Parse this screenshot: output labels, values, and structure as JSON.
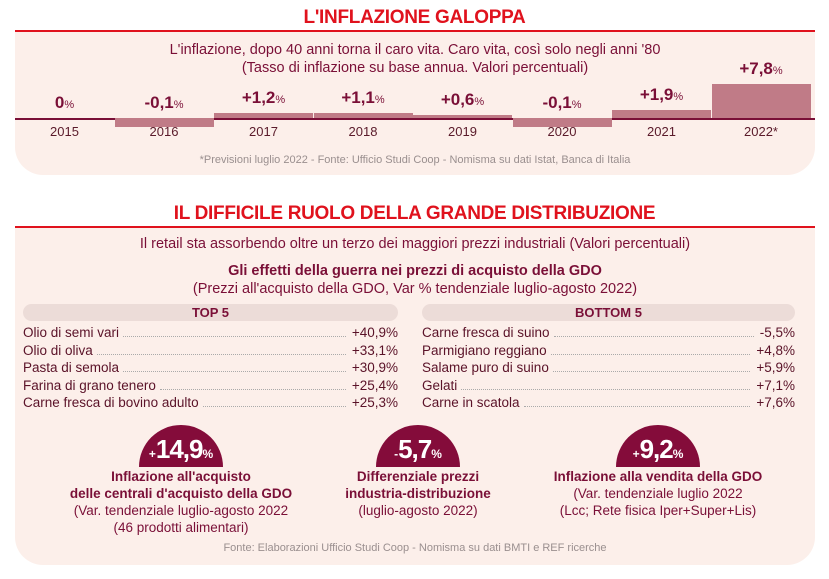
{
  "section1": {
    "title": "L'INFLAZIONE GALOPPA",
    "subtitle": "L'inflazione, dopo 40 anni torna il caro vita. Caro vita, così solo negli anni '80",
    "subtitle2": "(Tasso di inflazione su base annua. Valori percentuali)",
    "note": "*Previsioni luglio 2022 - Fonte: Ufficio Studi Coop - Nomisma su dati Istat, Banca di Italia"
  },
  "chart_data": {
    "type": "bar",
    "title": "L'inflazione, dopo 40 anni torna il caro vita",
    "categories": [
      "2015",
      "2016",
      "2017",
      "2018",
      "2019",
      "2020",
      "2021",
      "2022*"
    ],
    "values": [
      0,
      -0.1,
      1.2,
      1.1,
      0.6,
      -0.1,
      1.9,
      7.8
    ],
    "labels": [
      "0",
      "-0,1",
      "+1,2",
      "+1,1",
      "+0,6",
      "-0,1",
      "+1,9",
      "+7,8"
    ],
    "unit": "%",
    "ylabel": "Tasso di inflazione su base annua (%)"
  },
  "section2": {
    "title": "IL DIFFICILE RUOLO DELLA GRANDE DISTRIBUZIONE",
    "subtitle_bold": "Il retail sta assorbendo oltre un terzo dei maggiori prezzi industriali",
    "subtitle_rest": " (Valori percentuali)",
    "heading": "Gli effetti della guerra nei prezzi di acquisto della GDO",
    "heading2": "(Prezzi all'acquisto della GDO, Var % tendenziale luglio-agosto 2022)",
    "top_label": "TOP 5",
    "bottom_label": "BOTTOM 5",
    "top": [
      {
        "name": "Olio di semi vari",
        "value": "+40,9%"
      },
      {
        "name": "Olio di oliva",
        "value": "+33,1%"
      },
      {
        "name": "Pasta di semola",
        "value": "+30,9%"
      },
      {
        "name": "Farina di grano tenero",
        "value": "+25,4%"
      },
      {
        "name": "Carne fresca di bovino adulto",
        "value": "+25,3%"
      }
    ],
    "bottom": [
      {
        "name": "Carne fresca di suino",
        "value": "-5,5%"
      },
      {
        "name": "Parmigiano reggiano",
        "value": "+4,8%"
      },
      {
        "name": "Salame puro di suino",
        "value": "+5,9%"
      },
      {
        "name": "Gelati",
        "value": "+7,1%"
      },
      {
        "name": "Carne in scatola",
        "value": "+7,6%"
      }
    ],
    "kpis": [
      {
        "sign": "+",
        "value": "14,9",
        "pct": "%",
        "title1": "Inflazione all'acquisto",
        "title2": "delle centrali d'acquisto della GDO",
        "desc1": "(Var. tendenziale luglio-agosto 2022",
        "desc2": "(46 prodotti alimentari)"
      },
      {
        "sign": "-",
        "value": "5,7",
        "pct": "%",
        "title1": "Differenziale prezzi",
        "title2": "industria-distribuzione",
        "desc1": "(luglio-agosto 2022)",
        "desc2": ""
      },
      {
        "sign": "+",
        "value": "9,2",
        "pct": "%",
        "title1": "Inflazione alla vendita della GDO",
        "title2": "",
        "desc1": "(Var. tendenziale luglio 2022",
        "desc2": "(Lcc; Rete fisica Iper+Super+Lis)"
      }
    ],
    "note": "Fonte: Elaborazioni Ufficio Studi Coop - Nomisma su dati BMTI e REF ricerche"
  }
}
